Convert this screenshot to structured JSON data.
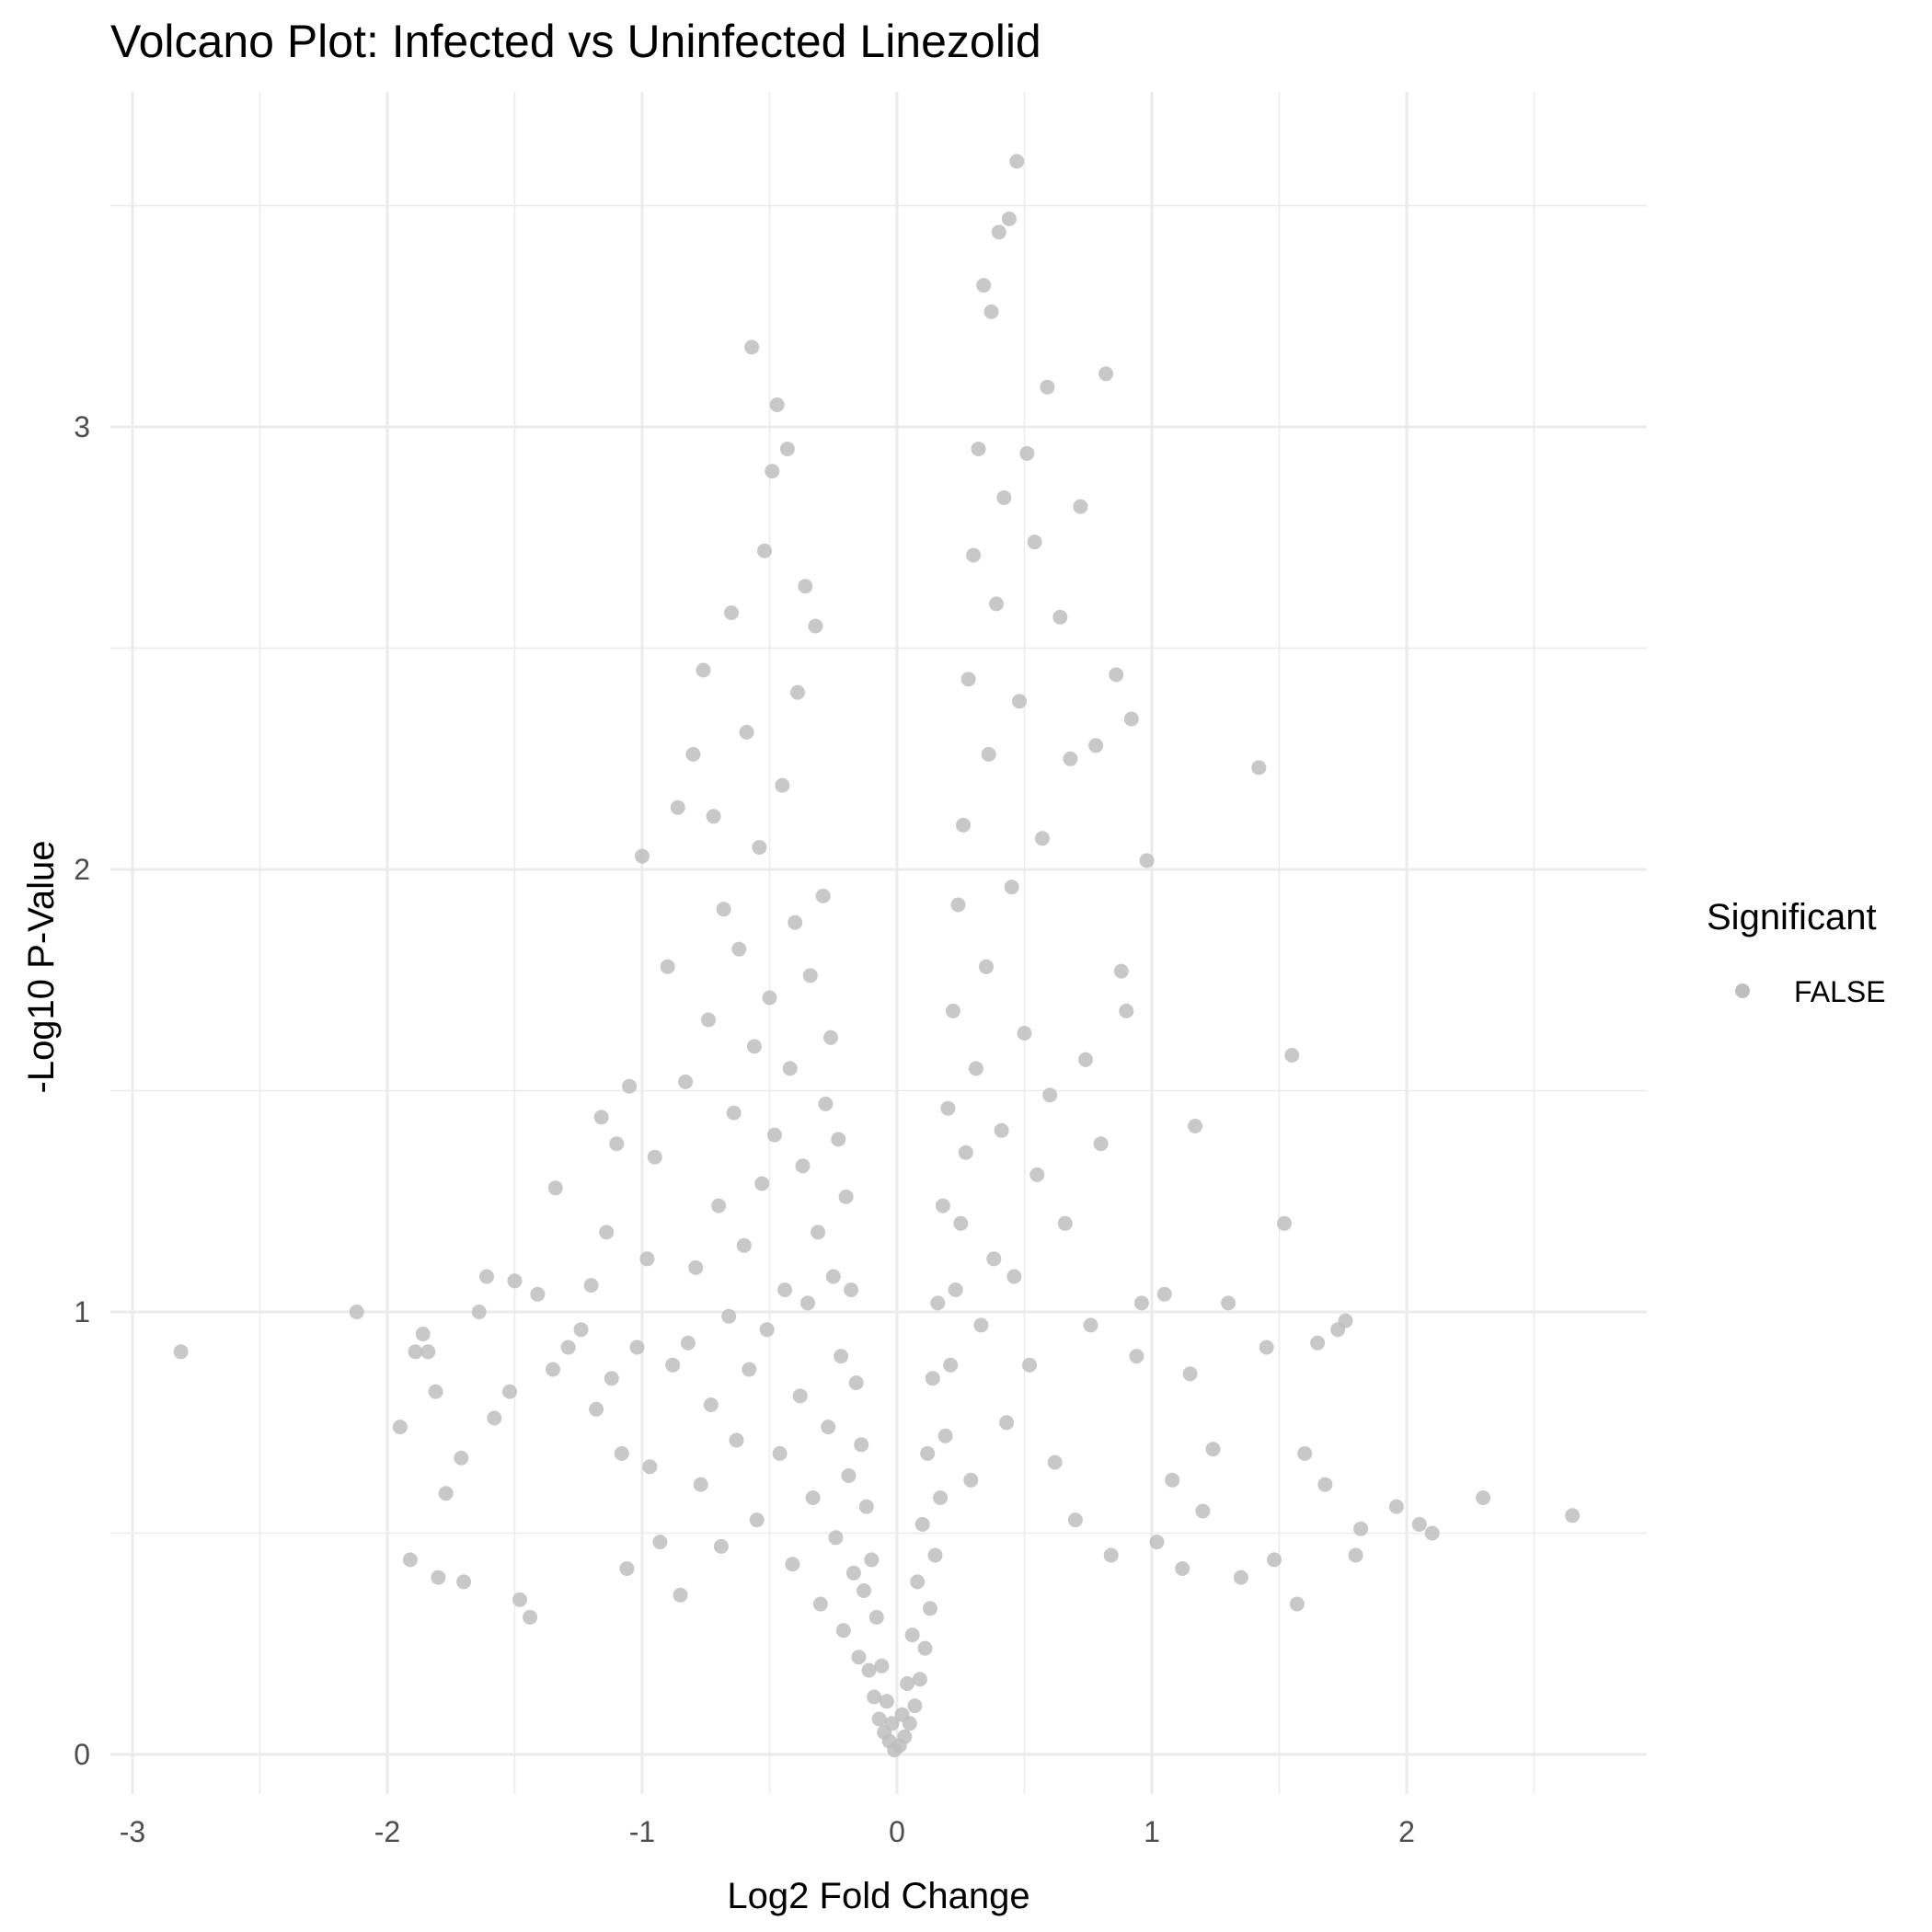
{
  "chart_data": {
    "type": "scatter",
    "title": "Volcano Plot: Infected vs Uninfected Linezolid",
    "xlabel": "Log2 Fold Change",
    "ylabel": "-Log10 P-Value",
    "xlim": [
      -2.95,
      2.95
    ],
    "ylim": [
      -0.16,
      3.58
    ],
    "x_ticks": [
      -3,
      -2,
      -1,
      0,
      1,
      2
    ],
    "x_tick_labels": [
      "-3",
      "-2",
      "-1",
      "0",
      "1",
      "2"
    ],
    "y_ticks": [
      0,
      1,
      2,
      3
    ],
    "y_tick_labels": [
      "0",
      "1",
      "2",
      "3"
    ],
    "grid": true,
    "legend": {
      "title": "Significant",
      "position": "right",
      "entries": [
        "FALSE"
      ]
    },
    "point_color": "#bebebe",
    "series": [
      {
        "name": "FALSE",
        "points": [
          [
            -2.81,
            0.91
          ],
          [
            -2.12,
            1.0
          ],
          [
            -1.95,
            0.74
          ],
          [
            -1.91,
            0.44
          ],
          [
            -1.89,
            0.91
          ],
          [
            -1.86,
            0.95
          ],
          [
            -1.84,
            0.91
          ],
          [
            -1.81,
            0.82
          ],
          [
            -1.8,
            0.4
          ],
          [
            -1.77,
            0.59
          ],
          [
            -1.71,
            0.67
          ],
          [
            -1.7,
            0.39
          ],
          [
            -1.64,
            1.0
          ],
          [
            -1.61,
            1.08
          ],
          [
            -1.58,
            0.76
          ],
          [
            -1.52,
            0.82
          ],
          [
            -1.5,
            1.07
          ],
          [
            -1.48,
            0.35
          ],
          [
            -1.44,
            0.31
          ],
          [
            -1.41,
            1.04
          ],
          [
            -1.35,
            0.87
          ],
          [
            -1.34,
            1.28
          ],
          [
            -1.29,
            0.92
          ],
          [
            -1.24,
            0.96
          ],
          [
            -1.2,
            1.06
          ],
          [
            -1.18,
            0.78
          ],
          [
            -1.16,
            1.44
          ],
          [
            -1.14,
            1.18
          ],
          [
            -1.12,
            0.85
          ],
          [
            -1.1,
            1.38
          ],
          [
            -1.08,
            0.68
          ],
          [
            -1.06,
            0.42
          ],
          [
            -1.05,
            1.51
          ],
          [
            -1.02,
            0.92
          ],
          [
            -1.0,
            2.03
          ],
          [
            -0.98,
            1.12
          ],
          [
            -0.97,
            0.65
          ],
          [
            -0.95,
            1.35
          ],
          [
            -0.93,
            0.48
          ],
          [
            -0.9,
            1.78
          ],
          [
            -0.88,
            0.88
          ],
          [
            -0.86,
            2.14
          ],
          [
            -0.85,
            0.36
          ],
          [
            -0.83,
            1.52
          ],
          [
            -0.82,
            0.93
          ],
          [
            -0.8,
            2.26
          ],
          [
            -0.79,
            1.1
          ],
          [
            -0.77,
            0.61
          ],
          [
            -0.76,
            2.45
          ],
          [
            -0.74,
            1.66
          ],
          [
            -0.73,
            0.79
          ],
          [
            -0.72,
            2.12
          ],
          [
            -0.7,
            1.24
          ],
          [
            -0.69,
            0.47
          ],
          [
            -0.68,
            1.91
          ],
          [
            -0.66,
            0.99
          ],
          [
            -0.65,
            2.58
          ],
          [
            -0.64,
            1.45
          ],
          [
            -0.63,
            0.71
          ],
          [
            -0.62,
            1.82
          ],
          [
            -0.6,
            1.15
          ],
          [
            -0.59,
            2.31
          ],
          [
            -0.58,
            0.87
          ],
          [
            -0.57,
            3.18
          ],
          [
            -0.56,
            1.6
          ],
          [
            -0.55,
            0.53
          ],
          [
            -0.54,
            2.05
          ],
          [
            -0.53,
            1.29
          ],
          [
            -0.52,
            2.72
          ],
          [
            -0.51,
            0.96
          ],
          [
            -0.5,
            1.71
          ],
          [
            -0.49,
            2.9
          ],
          [
            -0.48,
            1.4
          ],
          [
            -0.47,
            3.05
          ],
          [
            -0.46,
            0.68
          ],
          [
            -0.45,
            2.19
          ],
          [
            -0.44,
            1.05
          ],
          [
            -0.43,
            2.95
          ],
          [
            -0.42,
            1.55
          ],
          [
            -0.41,
            0.43
          ],
          [
            -0.4,
            1.88
          ],
          [
            -0.39,
            2.4
          ],
          [
            -0.38,
            0.81
          ],
          [
            -0.37,
            1.33
          ],
          [
            -0.36,
            2.64
          ],
          [
            -0.35,
            1.02
          ],
          [
            -0.34,
            1.76
          ],
          [
            -0.33,
            0.58
          ],
          [
            -0.32,
            2.55
          ],
          [
            -0.31,
            1.18
          ],
          [
            -0.3,
            0.34
          ],
          [
            -0.29,
            1.94
          ],
          [
            -0.28,
            1.47
          ],
          [
            -0.27,
            0.74
          ],
          [
            -0.26,
            1.62
          ],
          [
            -0.25,
            1.08
          ],
          [
            -0.24,
            0.49
          ],
          [
            -0.23,
            1.39
          ],
          [
            -0.22,
            0.9
          ],
          [
            -0.21,
            0.28
          ],
          [
            -0.2,
            1.26
          ],
          [
            -0.19,
            0.63
          ],
          [
            -0.18,
            1.05
          ],
          [
            -0.17,
            0.41
          ],
          [
            -0.16,
            0.84
          ],
          [
            -0.15,
            0.22
          ],
          [
            -0.14,
            0.7
          ],
          [
            -0.13,
            0.37
          ],
          [
            -0.12,
            0.56
          ],
          [
            -0.11,
            0.19
          ],
          [
            -0.1,
            0.44
          ],
          [
            -0.09,
            0.13
          ],
          [
            -0.08,
            0.31
          ],
          [
            -0.07,
            0.08
          ],
          [
            -0.06,
            0.2
          ],
          [
            -0.05,
            0.05
          ],
          [
            -0.04,
            0.12
          ],
          [
            -0.03,
            0.03
          ],
          [
            -0.02,
            0.07
          ],
          [
            -0.01,
            0.01
          ],
          [
            0.01,
            0.02
          ],
          [
            0.02,
            0.09
          ],
          [
            0.03,
            0.04
          ],
          [
            0.04,
            0.16
          ],
          [
            0.05,
            0.07
          ],
          [
            0.06,
            0.27
          ],
          [
            0.07,
            0.11
          ],
          [
            0.08,
            0.39
          ],
          [
            0.09,
            0.17
          ],
          [
            0.1,
            0.52
          ],
          [
            0.11,
            0.24
          ],
          [
            0.12,
            0.68
          ],
          [
            0.13,
            0.33
          ],
          [
            0.14,
            0.85
          ],
          [
            0.15,
            0.45
          ],
          [
            0.16,
            1.02
          ],
          [
            0.17,
            0.58
          ],
          [
            0.18,
            1.24
          ],
          [
            0.19,
            0.72
          ],
          [
            0.2,
            1.46
          ],
          [
            0.21,
            0.88
          ],
          [
            0.22,
            1.68
          ],
          [
            0.23,
            1.05
          ],
          [
            0.24,
            1.92
          ],
          [
            0.25,
            1.2
          ],
          [
            0.26,
            2.1
          ],
          [
            0.27,
            1.36
          ],
          [
            0.28,
            2.43
          ],
          [
            0.29,
            0.62
          ],
          [
            0.3,
            2.71
          ],
          [
            0.31,
            1.55
          ],
          [
            0.32,
            2.95
          ],
          [
            0.33,
            0.97
          ],
          [
            0.34,
            3.32
          ],
          [
            0.35,
            1.78
          ],
          [
            0.36,
            2.26
          ],
          [
            0.37,
            3.26
          ],
          [
            0.38,
            1.12
          ],
          [
            0.39,
            2.6
          ],
          [
            0.4,
            3.44
          ],
          [
            0.41,
            1.41
          ],
          [
            0.42,
            2.84
          ],
          [
            0.43,
            0.75
          ],
          [
            0.44,
            3.47
          ],
          [
            0.45,
            1.96
          ],
          [
            0.46,
            1.08
          ],
          [
            0.47,
            3.6
          ],
          [
            0.48,
            2.38
          ],
          [
            0.5,
            1.63
          ],
          [
            0.51,
            2.94
          ],
          [
            0.52,
            0.88
          ],
          [
            0.54,
            2.74
          ],
          [
            0.55,
            1.31
          ],
          [
            0.57,
            2.07
          ],
          [
            0.59,
            3.09
          ],
          [
            0.6,
            1.49
          ],
          [
            0.62,
            0.66
          ],
          [
            0.64,
            2.57
          ],
          [
            0.66,
            1.2
          ],
          [
            0.68,
            2.25
          ],
          [
            0.7,
            0.53
          ],
          [
            0.72,
            2.82
          ],
          [
            0.74,
            1.57
          ],
          [
            0.76,
            0.97
          ],
          [
            0.78,
            2.28
          ],
          [
            0.8,
            1.38
          ],
          [
            0.82,
            3.12
          ],
          [
            0.84,
            0.45
          ],
          [
            0.86,
            2.44
          ],
          [
            0.88,
            1.77
          ],
          [
            0.9,
            1.68
          ],
          [
            0.92,
            2.34
          ],
          [
            0.94,
            0.9
          ],
          [
            0.96,
            1.02
          ],
          [
            0.98,
            2.02
          ],
          [
            1.02,
            0.48
          ],
          [
            1.05,
            1.04
          ],
          [
            1.08,
            0.62
          ],
          [
            1.12,
            0.42
          ],
          [
            1.15,
            0.86
          ],
          [
            1.17,
            1.42
          ],
          [
            1.2,
            0.55
          ],
          [
            1.24,
            0.69
          ],
          [
            1.3,
            1.02
          ],
          [
            1.35,
            0.4
          ],
          [
            1.42,
            2.23
          ],
          [
            1.45,
            0.92
          ],
          [
            1.48,
            0.44
          ],
          [
            1.52,
            1.2
          ],
          [
            1.55,
            1.58
          ],
          [
            1.57,
            0.34
          ],
          [
            1.6,
            0.68
          ],
          [
            1.65,
            0.93
          ],
          [
            1.68,
            0.61
          ],
          [
            1.73,
            0.96
          ],
          [
            1.76,
            0.98
          ],
          [
            1.8,
            0.45
          ],
          [
            1.82,
            0.51
          ],
          [
            1.96,
            0.56
          ],
          [
            2.05,
            0.52
          ],
          [
            2.1,
            0.5
          ],
          [
            2.3,
            0.58
          ],
          [
            2.65,
            0.54
          ]
        ]
      }
    ]
  }
}
